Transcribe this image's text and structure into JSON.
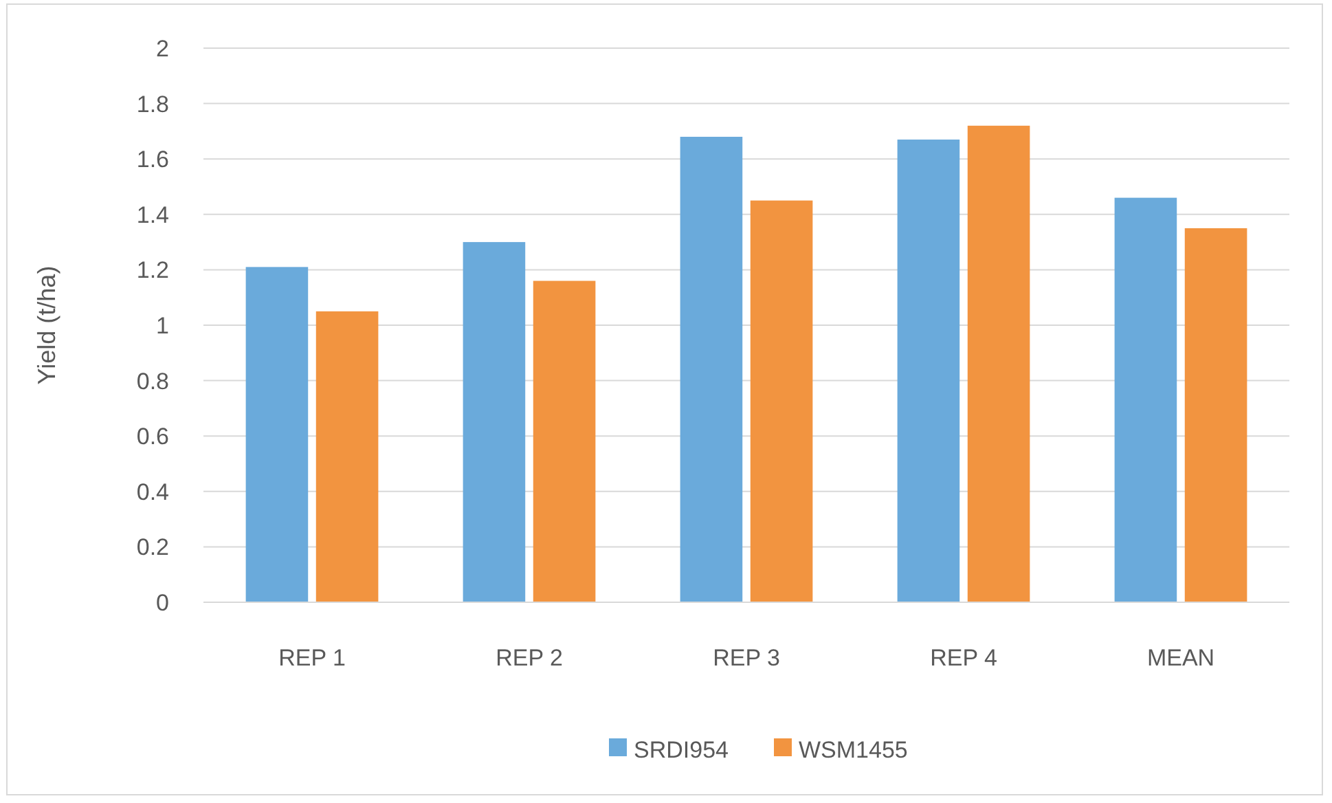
{
  "chart_data": {
    "type": "bar",
    "ylabel": "Yield (t/ha)",
    "categories": [
      "REP 1",
      "REP 2",
      "REP 3",
      "REP 4",
      "MEAN"
    ],
    "series": [
      {
        "name": "SRDI954",
        "color": "#6aaadb",
        "values": [
          1.21,
          1.3,
          1.68,
          1.67,
          1.46
        ]
      },
      {
        "name": "WSM1455",
        "color": "#f29440",
        "values": [
          1.05,
          1.16,
          1.45,
          1.72,
          1.35
        ]
      }
    ],
    "ylim": [
      0,
      2
    ],
    "yticks": [
      0,
      0.2,
      0.4,
      0.6,
      0.8,
      1,
      1.2,
      1.4,
      1.6,
      1.8,
      2
    ],
    "grid": "y",
    "legend": "bottom"
  }
}
